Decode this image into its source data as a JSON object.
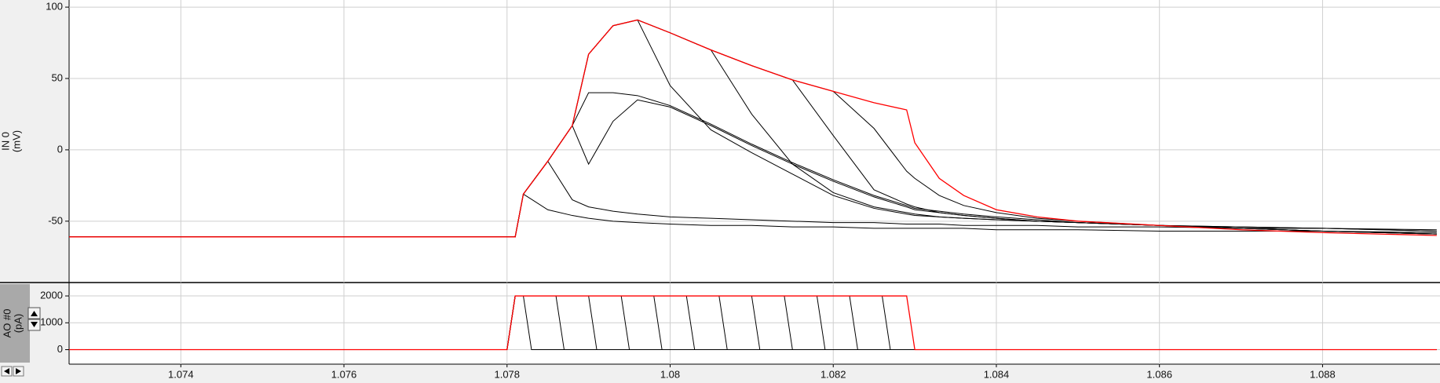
{
  "chart_data": [
    {
      "type": "line",
      "ylabel": "IN 0",
      "yunit": "(mV)",
      "x": [
        1.0726,
        1.0781,
        1.0782,
        1.0785,
        1.0788,
        1.079,
        1.0793,
        1.0796,
        1.08,
        1.0805,
        1.081,
        1.0815,
        1.082,
        1.0825,
        1.0829,
        1.083,
        1.0833,
        1.0836,
        1.084,
        1.0845,
        1.085,
        1.086,
        1.087,
        1.088,
        1.0894
      ],
      "xlim": [
        1.07263,
        1.08944
      ],
      "xticks": [
        1.074,
        1.076,
        1.078,
        1.08,
        1.082,
        1.084,
        1.086,
        1.088
      ],
      "ylim": [
        -93,
        105
      ],
      "yticks": [
        100,
        50,
        0,
        -50
      ],
      "grid": true,
      "series": [
        {
          "color": "#000000",
          "values": [
            -61,
            -61,
            -31,
            -42,
            -46,
            -48,
            -50,
            -51,
            -52,
            -53,
            -53,
            -54,
            -54,
            -55,
            -55,
            -55,
            -55,
            -55,
            -56,
            -56,
            -56,
            -57,
            -57,
            -57,
            -58
          ]
        },
        {
          "color": "#000000",
          "values": [
            -61,
            -61,
            -31,
            -8,
            -35,
            -40,
            -43,
            -45,
            -47,
            -48,
            -49,
            -50,
            -51,
            -51,
            -52,
            -52,
            -52,
            -53,
            -53,
            -53,
            -54,
            -54,
            -55,
            -55,
            -56
          ]
        },
        {
          "color": "#000000",
          "values": [
            -61,
            -61,
            -31,
            -8,
            17,
            -10,
            20,
            35,
            30,
            17,
            3,
            -10,
            -22,
            -33,
            -40,
            -42,
            -44,
            -46,
            -48,
            -50,
            -51,
            -53,
            -54,
            -55,
            -57
          ]
        },
        {
          "color": "#000000",
          "values": [
            -61,
            -61,
            -31,
            -8,
            17,
            40,
            40,
            38,
            31,
            18,
            4,
            -9,
            -21,
            -32,
            -39,
            -41,
            -43,
            -45,
            -47,
            -49,
            -51,
            -53,
            -54,
            -55,
            -57
          ]
        },
        {
          "color": "#000000",
          "values": [
            -61,
            -61,
            -31,
            -8,
            17,
            67,
            87,
            91,
            45,
            14,
            -2,
            -17,
            -32,
            -41,
            -45,
            -46,
            -47,
            -48,
            -49,
            -50,
            -51,
            -53,
            -55,
            -57,
            -59
          ]
        },
        {
          "color": "#000000",
          "values": [
            -61,
            -61,
            -31,
            -8,
            17,
            67,
            87,
            91,
            82,
            70,
            25,
            -10,
            -30,
            -40,
            -44,
            -45,
            -47,
            -48,
            -49,
            -50,
            -51,
            -53,
            -55,
            -57,
            -59
          ]
        },
        {
          "color": "#000000",
          "values": [
            -61,
            -61,
            -31,
            -8,
            17,
            67,
            87,
            91,
            82,
            70,
            59,
            49,
            10,
            -28,
            -38,
            -40,
            -44,
            -46,
            -48,
            -50,
            -51,
            -53,
            -55,
            -57,
            -59
          ]
        },
        {
          "color": "#000000",
          "values": [
            -61,
            -61,
            -31,
            -8,
            17,
            67,
            87,
            91,
            82,
            70,
            59,
            49,
            41,
            15,
            -15,
            -20,
            -32,
            -39,
            -44,
            -48,
            -50,
            -53,
            -55,
            -57,
            -59
          ]
        },
        {
          "color": "#ff0000",
          "values": [
            -61,
            -61,
            -31,
            -8,
            17,
            67,
            87,
            91,
            82,
            70,
            59,
            49,
            41,
            33,
            28,
            5,
            -20,
            -32,
            -42,
            -47,
            -50,
            -53,
            -56,
            -58,
            -60
          ]
        }
      ]
    },
    {
      "type": "line",
      "ylabel": "AO #0",
      "yunit": "(pA)",
      "xlim": [
        1.07263,
        1.08944
      ],
      "xticks": [
        1.074,
        1.076,
        1.078,
        1.08,
        1.082,
        1.084,
        1.086,
        1.088
      ],
      "ylim": [
        -540,
        2440
      ],
      "yticks": [
        2000,
        1000,
        0
      ],
      "grid": true,
      "series": [
        {
          "color": "#000000",
          "x": [
            1.0726,
            1.078,
            1.0781,
            1.0782,
            1.0783,
            1.0894
          ],
          "values": [
            0,
            0,
            2000,
            2000,
            0,
            0
          ]
        },
        {
          "color": "#000000",
          "x": [
            1.0726,
            1.078,
            1.0781,
            1.0786,
            1.0787,
            1.0894
          ],
          "values": [
            0,
            0,
            2000,
            2000,
            0,
            0
          ]
        },
        {
          "color": "#000000",
          "x": [
            1.0726,
            1.078,
            1.0781,
            1.079,
            1.0791,
            1.0894
          ],
          "values": [
            0,
            0,
            2000,
            2000,
            0,
            0
          ]
        },
        {
          "color": "#000000",
          "x": [
            1.0726,
            1.078,
            1.0781,
            1.0794,
            1.0795,
            1.0894
          ],
          "values": [
            0,
            0,
            2000,
            2000,
            0,
            0
          ]
        },
        {
          "color": "#000000",
          "x": [
            1.0726,
            1.078,
            1.0781,
            1.0798,
            1.0799,
            1.0894
          ],
          "values": [
            0,
            0,
            2000,
            2000,
            0,
            0
          ]
        },
        {
          "color": "#000000",
          "x": [
            1.0726,
            1.078,
            1.0781,
            1.0802,
            1.0803,
            1.0894
          ],
          "values": [
            0,
            0,
            2000,
            2000,
            0,
            0
          ]
        },
        {
          "color": "#000000",
          "x": [
            1.0726,
            1.078,
            1.0781,
            1.0806,
            1.0807,
            1.0894
          ],
          "values": [
            0,
            0,
            2000,
            2000,
            0,
            0
          ]
        },
        {
          "color": "#000000",
          "x": [
            1.0726,
            1.078,
            1.0781,
            1.081,
            1.0811,
            1.0894
          ],
          "values": [
            0,
            0,
            2000,
            2000,
            0,
            0
          ]
        },
        {
          "color": "#000000",
          "x": [
            1.0726,
            1.078,
            1.0781,
            1.0814,
            1.0815,
            1.0894
          ],
          "values": [
            0,
            0,
            2000,
            2000,
            0,
            0
          ]
        },
        {
          "color": "#000000",
          "x": [
            1.0726,
            1.078,
            1.0781,
            1.0818,
            1.0819,
            1.0894
          ],
          "values": [
            0,
            0,
            2000,
            2000,
            0,
            0
          ]
        },
        {
          "color": "#000000",
          "x": [
            1.0726,
            1.078,
            1.0781,
            1.0822,
            1.0823,
            1.0894
          ],
          "values": [
            0,
            0,
            2000,
            2000,
            0,
            0
          ]
        },
        {
          "color": "#000000",
          "x": [
            1.0726,
            1.078,
            1.0781,
            1.0826,
            1.0827,
            1.0894
          ],
          "values": [
            0,
            0,
            2000,
            2000,
            0,
            0
          ]
        },
        {
          "color": "#ff0000",
          "x": [
            1.0726,
            1.078,
            1.0781,
            1.0829,
            1.083,
            1.0894
          ],
          "values": [
            0,
            0,
            2000,
            2000,
            0,
            0
          ]
        }
      ]
    }
  ]
}
